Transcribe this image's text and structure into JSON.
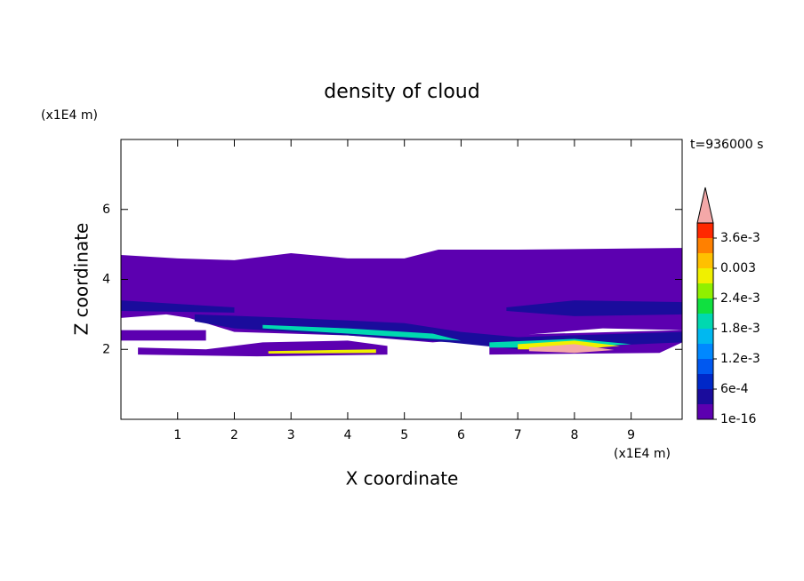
{
  "chart_data": {
    "type": "contour",
    "title": "density of cloud",
    "xlabel": "X coordinate",
    "ylabel": "Z coordinate",
    "x_unit": "(x1E4 m)",
    "y_unit": "(x1E4 m)",
    "annotation": "t=936000 s",
    "xlim": [
      0,
      9.9
    ],
    "ylim": [
      0,
      8
    ],
    "xticks": [
      1,
      2,
      3,
      4,
      5,
      6,
      7,
      8,
      9
    ],
    "yticks": [
      2,
      4,
      6
    ],
    "levels": [
      1e-16,
      0.0003,
      0.0006,
      0.0009,
      0.0012,
      0.0015,
      0.0018,
      0.0021,
      0.0024,
      0.0027,
      0.003,
      0.0033,
      0.0036,
      0.0039
    ],
    "colors": [
      "#5c00b0",
      "#1a0c9c",
      "#0028c8",
      "#0058f0",
      "#0088ff",
      "#00b8f0",
      "#00d8b0",
      "#10e040",
      "#90f000",
      "#f0f000",
      "#ffc000",
      "#ff8000",
      "#ff2800",
      "#f4a8a8"
    ],
    "colorbar_ticks": [
      1e-16,
      {
        "value": 0.0006,
        "label": "6e-4"
      },
      {
        "value": 0.0012,
        "label": "1.2e-3"
      },
      {
        "value": 0.0018,
        "label": "1.8e-3"
      },
      {
        "value": 0.0024,
        "label": "2.4e-3"
      },
      0.003,
      {
        "value": 0.0036,
        "label": "3.6e-3"
      }
    ],
    "regions": [
      {
        "level": 1e-16,
        "x": [
          0,
          1,
          2,
          3,
          4,
          5,
          5.6,
          7,
          9.9,
          9.9,
          8.5,
          7,
          5.5,
          4,
          2,
          1.2,
          0.8,
          0
        ],
        "z": [
          4.7,
          4.6,
          4.55,
          4.75,
          4.6,
          4.6,
          4.85,
          4.85,
          4.9,
          2.55,
          2.6,
          2.4,
          2.2,
          2.4,
          2.5,
          2.9,
          3.0,
          2.9
        ]
      },
      {
        "level": 1e-16,
        "x": [
          0,
          1.5,
          1.5,
          0
        ],
        "z": [
          2.55,
          2.55,
          2.25,
          2.25
        ]
      },
      {
        "level": 1e-16,
        "x": [
          0.3,
          1.5,
          2.5,
          4,
          4.7,
          4.7,
          2.4,
          0.3
        ],
        "z": [
          2.05,
          2.0,
          2.2,
          2.25,
          2.1,
          1.85,
          1.8,
          1.85
        ]
      },
      {
        "level": 1e-16,
        "x": [
          6.5,
          9.9,
          9.9,
          9.5,
          6.5
        ],
        "z": [
          2.4,
          2.55,
          2.2,
          1.9,
          1.85
        ]
      },
      {
        "level": 0.0003,
        "x": [
          1.3,
          3,
          5,
          6,
          7,
          9.9,
          9.9,
          7,
          5.8,
          4,
          2,
          1.3
        ],
        "z": [
          3.0,
          2.9,
          2.75,
          2.5,
          2.35,
          2.5,
          2.2,
          2.0,
          2.2,
          2.4,
          2.6,
          2.8
        ]
      },
      {
        "level": 0.0003,
        "x": [
          6.8,
          8,
          9.9,
          9.9,
          8,
          6.8
        ],
        "z": [
          3.2,
          3.4,
          3.35,
          3.0,
          2.95,
          3.1
        ]
      },
      {
        "level": 0.0003,
        "x": [
          0,
          1,
          2,
          2,
          0
        ],
        "z": [
          3.4,
          3.3,
          3.2,
          3.05,
          3.1
        ]
      },
      {
        "level": 0.0018,
        "x": [
          2.5,
          4,
          5.5,
          6,
          5.5,
          4,
          2.5
        ],
        "z": [
          2.7,
          2.6,
          2.45,
          2.25,
          2.3,
          2.45,
          2.6
        ]
      },
      {
        "level": 0.0018,
        "x": [
          6.5,
          8,
          9,
          8,
          6.5
        ],
        "z": [
          2.2,
          2.3,
          2.15,
          2.05,
          2.05
        ]
      },
      {
        "level": 0.0027,
        "x": [
          7,
          8,
          8.8,
          8,
          7
        ],
        "z": [
          2.15,
          2.25,
          2.1,
          2.0,
          2.0
        ]
      },
      {
        "level": 0.0027,
        "x": [
          2.6,
          4.5,
          4.5,
          2.6
        ],
        "z": [
          1.95,
          2.0,
          1.9,
          1.88
        ]
      },
      {
        "level": 0.0039,
        "x": [
          7.2,
          8,
          8.7,
          8,
          7.2
        ],
        "z": [
          2.05,
          2.15,
          1.98,
          1.9,
          1.95
        ]
      }
    ]
  }
}
